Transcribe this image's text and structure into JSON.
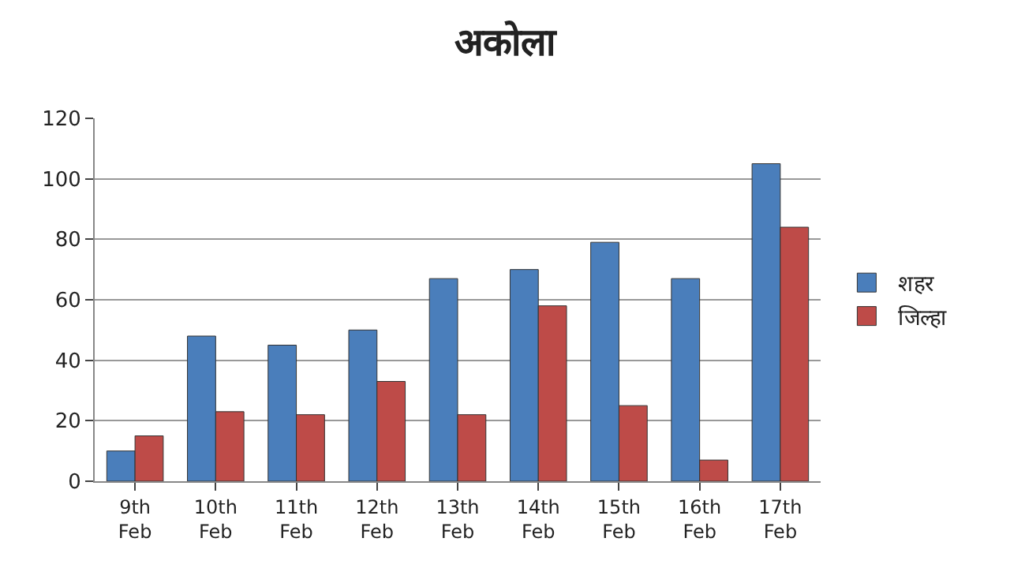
{
  "chart_data": {
    "type": "bar",
    "title": "अकोला",
    "categories": [
      "9th\nFeb",
      "10th\nFeb",
      "11th\nFeb",
      "12th\nFeb",
      "13th\nFeb",
      "14th\nFeb",
      "15th\nFeb",
      "16th\nFeb",
      "17th\nFeb"
    ],
    "series": [
      {
        "name": "शहर",
        "color": "#4a7ebb",
        "values": [
          10,
          48,
          45,
          50,
          67,
          70,
          79,
          67,
          105
        ]
      },
      {
        "name": "जिल्हा",
        "color": "#be4b48",
        "values": [
          15,
          23,
          22,
          33,
          22,
          58,
          25,
          7,
          84
        ]
      }
    ],
    "ylim": [
      0,
      120
    ],
    "yticks": [
      0,
      20,
      40,
      60,
      80,
      100,
      120
    ],
    "grid": "y",
    "legend": "right"
  }
}
